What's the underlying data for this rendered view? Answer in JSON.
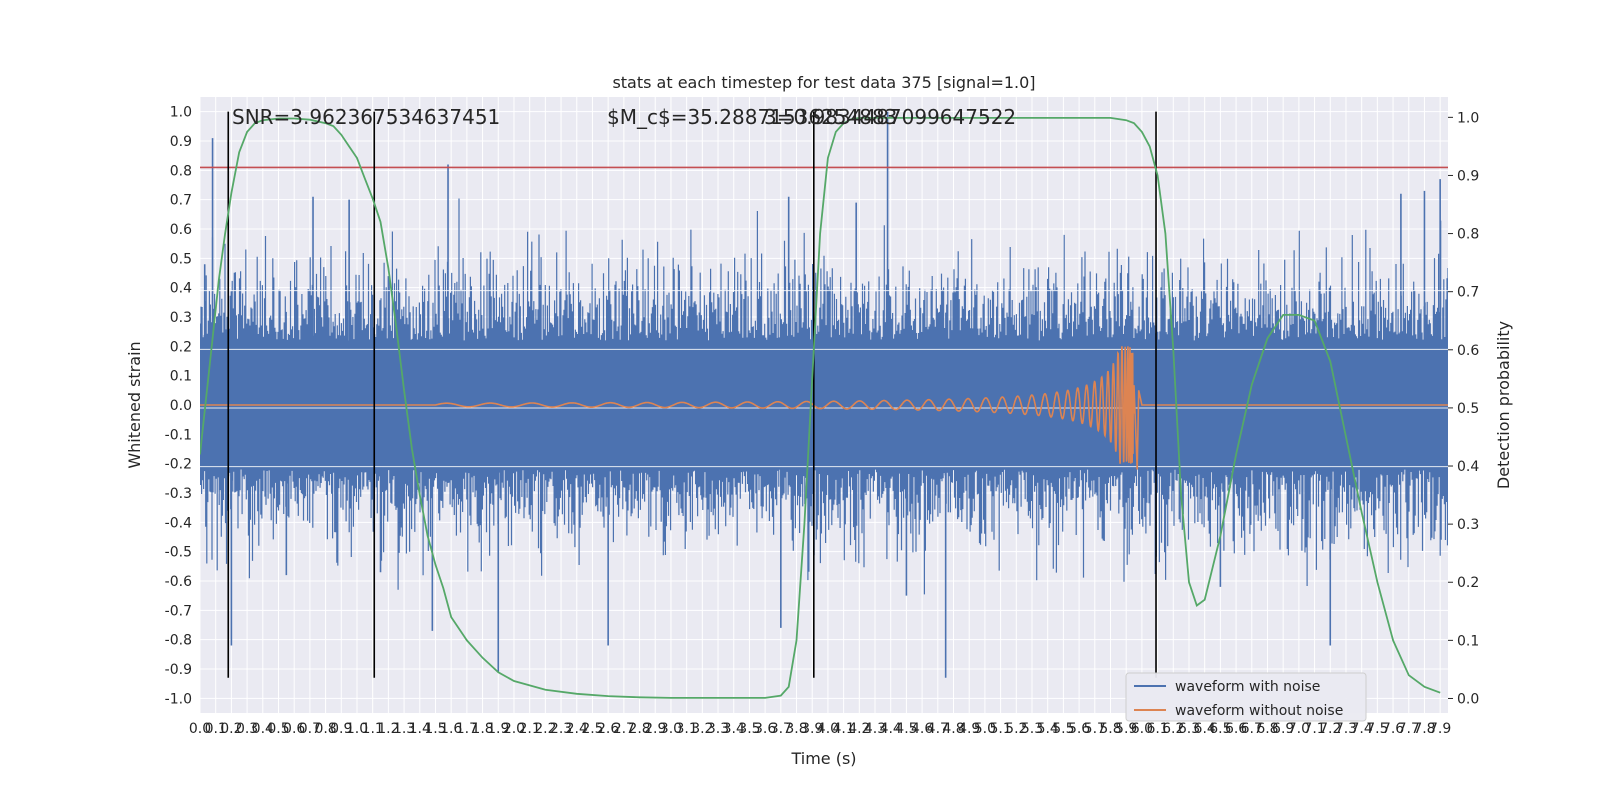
{
  "chart_data": {
    "type": "line",
    "title": "stats at each timestep for test data 375 [signal=1.0]",
    "xlabel": "Time (s)",
    "ylabel": "Whitened strain",
    "y2label": "Detection probability",
    "xlim": [
      0.0,
      7.95
    ],
    "ylim": [
      -1.05,
      1.05
    ],
    "y2lim": [
      -0.025,
      1.035
    ],
    "grid": true,
    "legend_position": "lower-right",
    "annotations": {
      "snr": "SNR=3.962367534637451",
      "mc": "$M_c$=35.28871536254883",
      "overlap": "3=0.9834487099647522"
    },
    "vertical_markers_x": [
      0.18,
      1.11,
      3.91,
      6.09
    ],
    "threshold": {
      "y": 0.81,
      "color": "#c44e52"
    },
    "noise_band": {
      "ymin": -0.15,
      "ymax": 0.2
    },
    "xticks": [
      0.0,
      0.1,
      0.2,
      0.3,
      0.4,
      0.5,
      0.6,
      0.7,
      0.8,
      0.9,
      1.0,
      1.1,
      1.2,
      1.3,
      1.4,
      1.5,
      1.6,
      1.7,
      1.8,
      1.9,
      2.0,
      2.1,
      2.2,
      2.3,
      2.4,
      2.5,
      2.6,
      2.7,
      2.8,
      2.9,
      3.0,
      3.1,
      3.2,
      3.3,
      3.4,
      3.5,
      3.6,
      3.7,
      3.8,
      3.9,
      4.0,
      4.1,
      4.2,
      4.3,
      4.4,
      4.5,
      4.6,
      4.7,
      4.8,
      4.9,
      5.0,
      5.1,
      5.2,
      5.3,
      5.4,
      5.5,
      5.6,
      5.7,
      5.8,
      5.9,
      6.0,
      6.1,
      6.2,
      6.3,
      6.4,
      6.5,
      6.6,
      6.7,
      6.8,
      6.9,
      7.0,
      7.1,
      7.2,
      7.3,
      7.4,
      7.5,
      7.6,
      7.7,
      7.8,
      7.9
    ],
    "yticks": [
      -1.0,
      -0.9,
      -0.8,
      -0.7,
      -0.6,
      -0.5,
      -0.4,
      -0.3,
      -0.2,
      -0.1,
      0.0,
      0.1,
      0.2,
      0.3,
      0.4,
      0.5,
      0.6,
      0.7,
      0.8,
      0.9,
      1.0
    ],
    "y2ticks": [
      0.0,
      0.1,
      0.2,
      0.3,
      0.4,
      0.5,
      0.6,
      0.7,
      0.8,
      0.9,
      1.0
    ],
    "series": [
      {
        "name": "waveform with noise",
        "color": "#4c72b0",
        "axis": "left",
        "spikes": [
          {
            "x": 0.03,
            "y": 0.48
          },
          {
            "x": 0.08,
            "y": 0.91
          },
          {
            "x": 0.2,
            "y": -0.82
          },
          {
            "x": 0.55,
            "y": -0.58
          },
          {
            "x": 0.72,
            "y": 0.71
          },
          {
            "x": 0.95,
            "y": 0.7
          },
          {
            "x": 1.15,
            "y": -0.57
          },
          {
            "x": 1.58,
            "y": 0.82
          },
          {
            "x": 1.48,
            "y": -0.77
          },
          {
            "x": 1.9,
            "y": -0.91
          },
          {
            "x": 2.6,
            "y": -0.82
          },
          {
            "x": 3.7,
            "y": -0.76
          },
          {
            "x": 3.75,
            "y": 0.71
          },
          {
            "x": 4.18,
            "y": 0.69
          },
          {
            "x": 4.38,
            "y": 1.0
          },
          {
            "x": 4.75,
            "y": -0.93
          },
          {
            "x": 4.5,
            "y": -0.65
          },
          {
            "x": 6.5,
            "y": -0.62
          },
          {
            "x": 7.2,
            "y": -0.82
          },
          {
            "x": 7.65,
            "y": 0.72
          },
          {
            "x": 7.8,
            "y": 0.73
          },
          {
            "x": 7.9,
            "y": 0.77
          }
        ]
      },
      {
        "name": "waveform without noise",
        "color": "#dd8452",
        "axis": "left",
        "chirp_start_x": 1.5,
        "merger_x": 5.95,
        "peak_amplitude": 0.2
      },
      {
        "name": "detection probability",
        "color": "#55a868",
        "axis": "right",
        "x": [
          0.0,
          0.04,
          0.08,
          0.12,
          0.16,
          0.2,
          0.25,
          0.3,
          0.35,
          0.4,
          0.5,
          0.6,
          0.7,
          0.8,
          0.85,
          0.9,
          0.95,
          1.0,
          1.05,
          1.1,
          1.15,
          1.2,
          1.25,
          1.3,
          1.35,
          1.4,
          1.45,
          1.5,
          1.55,
          1.6,
          1.7,
          1.8,
          1.9,
          2.0,
          2.2,
          2.4,
          2.6,
          2.8,
          3.0,
          3.2,
          3.4,
          3.6,
          3.7,
          3.75,
          3.8,
          3.85,
          3.9,
          3.95,
          4.0,
          4.05,
          4.1,
          4.15,
          4.2,
          4.4,
          4.6,
          4.8,
          5.0,
          5.2,
          5.4,
          5.6,
          5.8,
          5.9,
          5.95,
          6.0,
          6.05,
          6.1,
          6.15,
          6.2,
          6.25,
          6.3,
          6.35,
          6.4,
          6.5,
          6.6,
          6.7,
          6.8,
          6.9,
          7.0,
          7.1,
          7.2,
          7.3,
          7.4,
          7.5,
          7.6,
          7.7,
          7.8,
          7.9
        ],
        "values": [
          0.42,
          0.52,
          0.62,
          0.72,
          0.8,
          0.87,
          0.94,
          0.975,
          0.99,
          0.995,
          0.998,
          0.998,
          0.996,
          0.99,
          0.985,
          0.97,
          0.95,
          0.93,
          0.895,
          0.86,
          0.82,
          0.74,
          0.64,
          0.53,
          0.43,
          0.35,
          0.28,
          0.23,
          0.19,
          0.14,
          0.1,
          0.07,
          0.045,
          0.03,
          0.015,
          0.008,
          0.004,
          0.002,
          0.001,
          0.001,
          0.001,
          0.001,
          0.005,
          0.02,
          0.1,
          0.3,
          0.55,
          0.8,
          0.93,
          0.975,
          0.99,
          0.997,
          0.999,
          0.999,
          0.999,
          0.999,
          0.999,
          0.999,
          0.999,
          0.999,
          0.999,
          0.995,
          0.99,
          0.975,
          0.95,
          0.9,
          0.8,
          0.6,
          0.35,
          0.2,
          0.16,
          0.17,
          0.28,
          0.42,
          0.54,
          0.62,
          0.66,
          0.66,
          0.65,
          0.58,
          0.45,
          0.32,
          0.2,
          0.1,
          0.04,
          0.02,
          0.01
        ]
      }
    ]
  },
  "legend": {
    "items": [
      {
        "label": "waveform with noise",
        "color": "#4c72b0"
      },
      {
        "label": "waveform without noise",
        "color": "#dd8452"
      }
    ]
  }
}
